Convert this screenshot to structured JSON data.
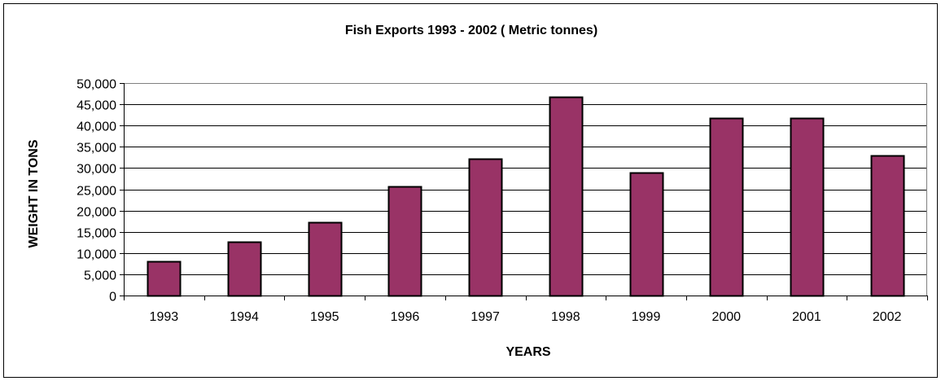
{
  "chart_data": {
    "type": "bar",
    "title": "Fish Exports 1993 - 2002 ( Metric tonnes)",
    "xlabel": "YEARS",
    "ylabel": "WEIGHT IN TONS",
    "categories": [
      "1993",
      "1994",
      "1995",
      "1996",
      "1997",
      "1998",
      "1999",
      "2000",
      "2001",
      "2002"
    ],
    "values": [
      8000,
      12700,
      17300,
      25600,
      32200,
      46800,
      29000,
      41800,
      41700,
      33000
    ],
    "ylim": [
      0,
      50000
    ],
    "yticks": [
      0,
      5000,
      10000,
      15000,
      20000,
      25000,
      30000,
      35000,
      40000,
      45000,
      50000
    ],
    "ytick_labels": [
      "0",
      "5,000",
      "10,000",
      "15,000",
      "20,000",
      "25,000",
      "30,000",
      "35,000",
      "40,000",
      "45,000",
      "50,000"
    ],
    "grid": true,
    "legend": "none",
    "colors": {
      "bar_fill": "#993366",
      "bar_stroke": "#000000",
      "plot_border": "#808080",
      "gridline": "#000000",
      "background": "#ffffff"
    }
  }
}
